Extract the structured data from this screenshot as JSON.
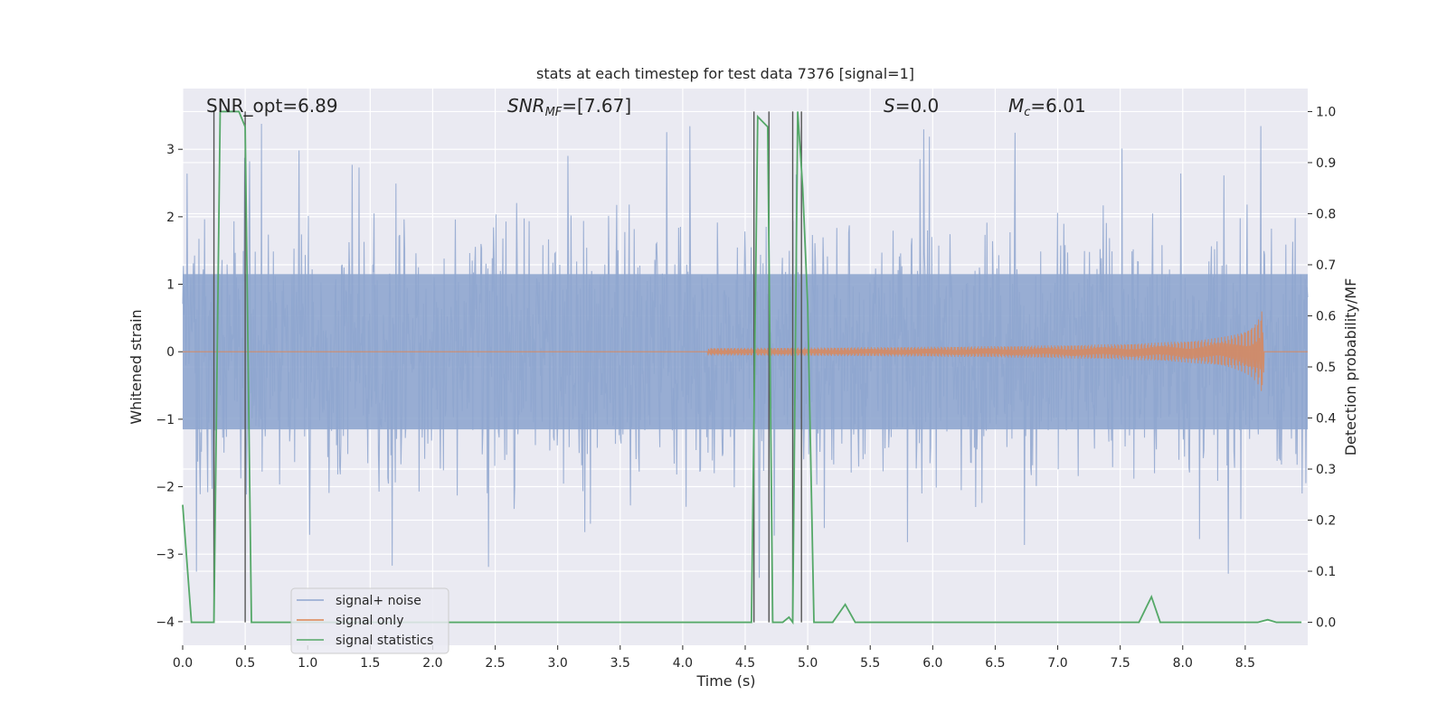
{
  "chart_data": {
    "type": "line",
    "title": "stats at each timestep for test data 7376 [signal=1]",
    "xlabel": "Time (s)",
    "ylabel": "Whitened strain",
    "y2label": "Detection probability/MF",
    "xlim": [
      0.0,
      9.0
    ],
    "ylim": [
      -4.35,
      3.9
    ],
    "y2lim": [
      -0.045,
      1.045
    ],
    "xticks": [
      0.0,
      0.5,
      1.0,
      1.5,
      2.0,
      2.5,
      3.0,
      3.5,
      4.0,
      4.5,
      5.0,
      5.5,
      6.0,
      6.5,
      7.0,
      7.5,
      8.0,
      8.5
    ],
    "xtick_labels": [
      "0.0",
      "0.5",
      "1.0",
      "1.5",
      "2.0",
      "2.5",
      "3.0",
      "3.5",
      "4.0",
      "4.5",
      "5.0",
      "5.5",
      "6.0",
      "6.5",
      "7.0",
      "7.5",
      "8.0",
      "8.5"
    ],
    "yticks": [
      3,
      2,
      1,
      0,
      -1,
      -2,
      -3,
      -4
    ],
    "ytick_labels": [
      "3",
      "2",
      "1",
      "0",
      "−1",
      "−2",
      "−3",
      "−4"
    ],
    "y2ticks": [
      1.0,
      0.9,
      0.8,
      0.7,
      0.6,
      0.5,
      0.4,
      0.3,
      0.2,
      0.1,
      0.0
    ],
    "y2tick_labels": [
      "1.0",
      "0.9",
      "0.8",
      "0.7",
      "0.6",
      "0.5",
      "0.4",
      "0.3",
      "0.2",
      "0.1",
      "0.0"
    ],
    "annotations": {
      "snr_opt": "SNR_opt=6.89",
      "snr_mf_sym": "SNR",
      "snr_mf_sub": "MF",
      "snr_mf_val": "=[7.67]",
      "s_sym": "S",
      "s_val": "=0.0",
      "mc_sym": "M",
      "mc_sub": "c",
      "mc_val": "=6.01"
    },
    "legend": {
      "position": "lower-left",
      "entries": [
        "signal+ noise",
        "signal only",
        "signal statistics"
      ]
    },
    "series": [
      {
        "name": "signal+ noise",
        "color": "#8fa6cf",
        "description": "whitened noisy strain, roughly between -3 and 3.4",
        "noise_seed": 7376,
        "sample_count": 1800,
        "core_range": [
          -1.8,
          2.0
        ],
        "peak_range": [
          -3.3,
          3.4
        ]
      },
      {
        "name": "signal only",
        "color": "#dd8452",
        "description": "chirp signal growing toward merger near t=8.65 s",
        "chirp_start": 4.2,
        "merger_time": 8.65,
        "peak_amplitude": 0.75
      },
      {
        "name": "signal statistics",
        "color": "#55a868",
        "x": [
          0.0,
          0.07,
          0.25,
          0.3,
          0.45,
          0.5,
          0.55,
          4.55,
          4.6,
          4.68,
          4.72,
          4.8,
          4.85,
          4.88,
          4.92,
          4.96,
          5.0,
          5.05,
          5.2,
          5.3,
          5.38,
          6.2,
          7.65,
          7.75,
          7.82,
          8.6,
          8.68,
          8.75,
          8.95
        ],
        "values": [
          0.23,
          0.0,
          0.0,
          1.0,
          1.0,
          0.97,
          0.0,
          0.0,
          0.99,
          0.97,
          0.0,
          0.0,
          0.01,
          0.0,
          1.0,
          0.85,
          0.62,
          0.0,
          0.0,
          0.035,
          0.0,
          0.0,
          0.0,
          0.05,
          0.0,
          0.0,
          0.005,
          0.0,
          0.0
        ]
      }
    ],
    "vertical_markers": [
      0.25,
      0.5,
      4.57,
      4.69,
      4.88,
      4.95
    ],
    "marker_color": "#555555"
  }
}
